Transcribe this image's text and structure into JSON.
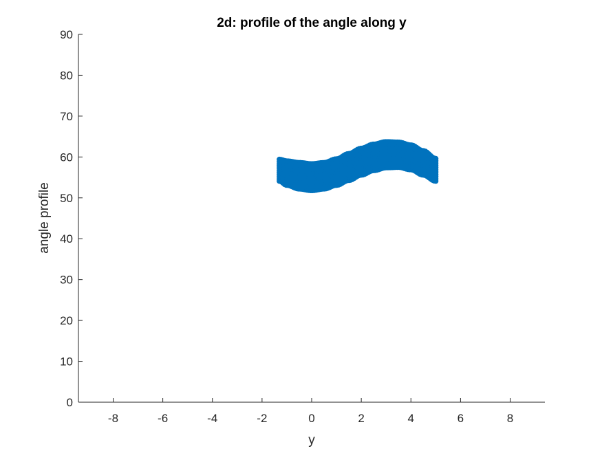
{
  "chart_data": {
    "type": "scatter",
    "title": "2d: profile of the angle along y",
    "xlabel": "y",
    "ylabel": "angle profile",
    "xlim": [
      -9.4,
      9.4
    ],
    "ylim": [
      0,
      90
    ],
    "xticks": [
      -8,
      -6,
      -4,
      -2,
      0,
      2,
      4,
      6,
      8
    ],
    "yticks": [
      0,
      10,
      20,
      30,
      40,
      50,
      60,
      70,
      80,
      90
    ],
    "grid": false,
    "box": false,
    "series": [
      {
        "color": "#0072bd",
        "marker": "filled circle",
        "x_range": [
          -1.3,
          5.0
        ],
        "lower_edge": {
          "x": [
            -1.3,
            -1.0,
            -0.5,
            0.0,
            0.5,
            1.0,
            1.5,
            2.0,
            2.5,
            3.0,
            3.5,
            4.0,
            4.5,
            5.0
          ],
          "y": [
            54.1,
            53.1,
            52.2,
            51.8,
            52.2,
            53.1,
            54.3,
            55.6,
            56.7,
            57.4,
            57.5,
            56.9,
            55.6,
            54.1
          ]
        },
        "upper_edge": {
          "x": [
            -1.3,
            -1.0,
            -0.5,
            0.0,
            0.5,
            1.0,
            1.5,
            2.0,
            2.5,
            3.0,
            3.5,
            4.0,
            4.5,
            5.0
          ],
          "y": [
            59.4,
            59.0,
            58.6,
            58.3,
            58.6,
            59.5,
            60.8,
            62.1,
            63.1,
            63.7,
            63.6,
            62.9,
            61.5,
            59.6
          ]
        }
      }
    ]
  }
}
